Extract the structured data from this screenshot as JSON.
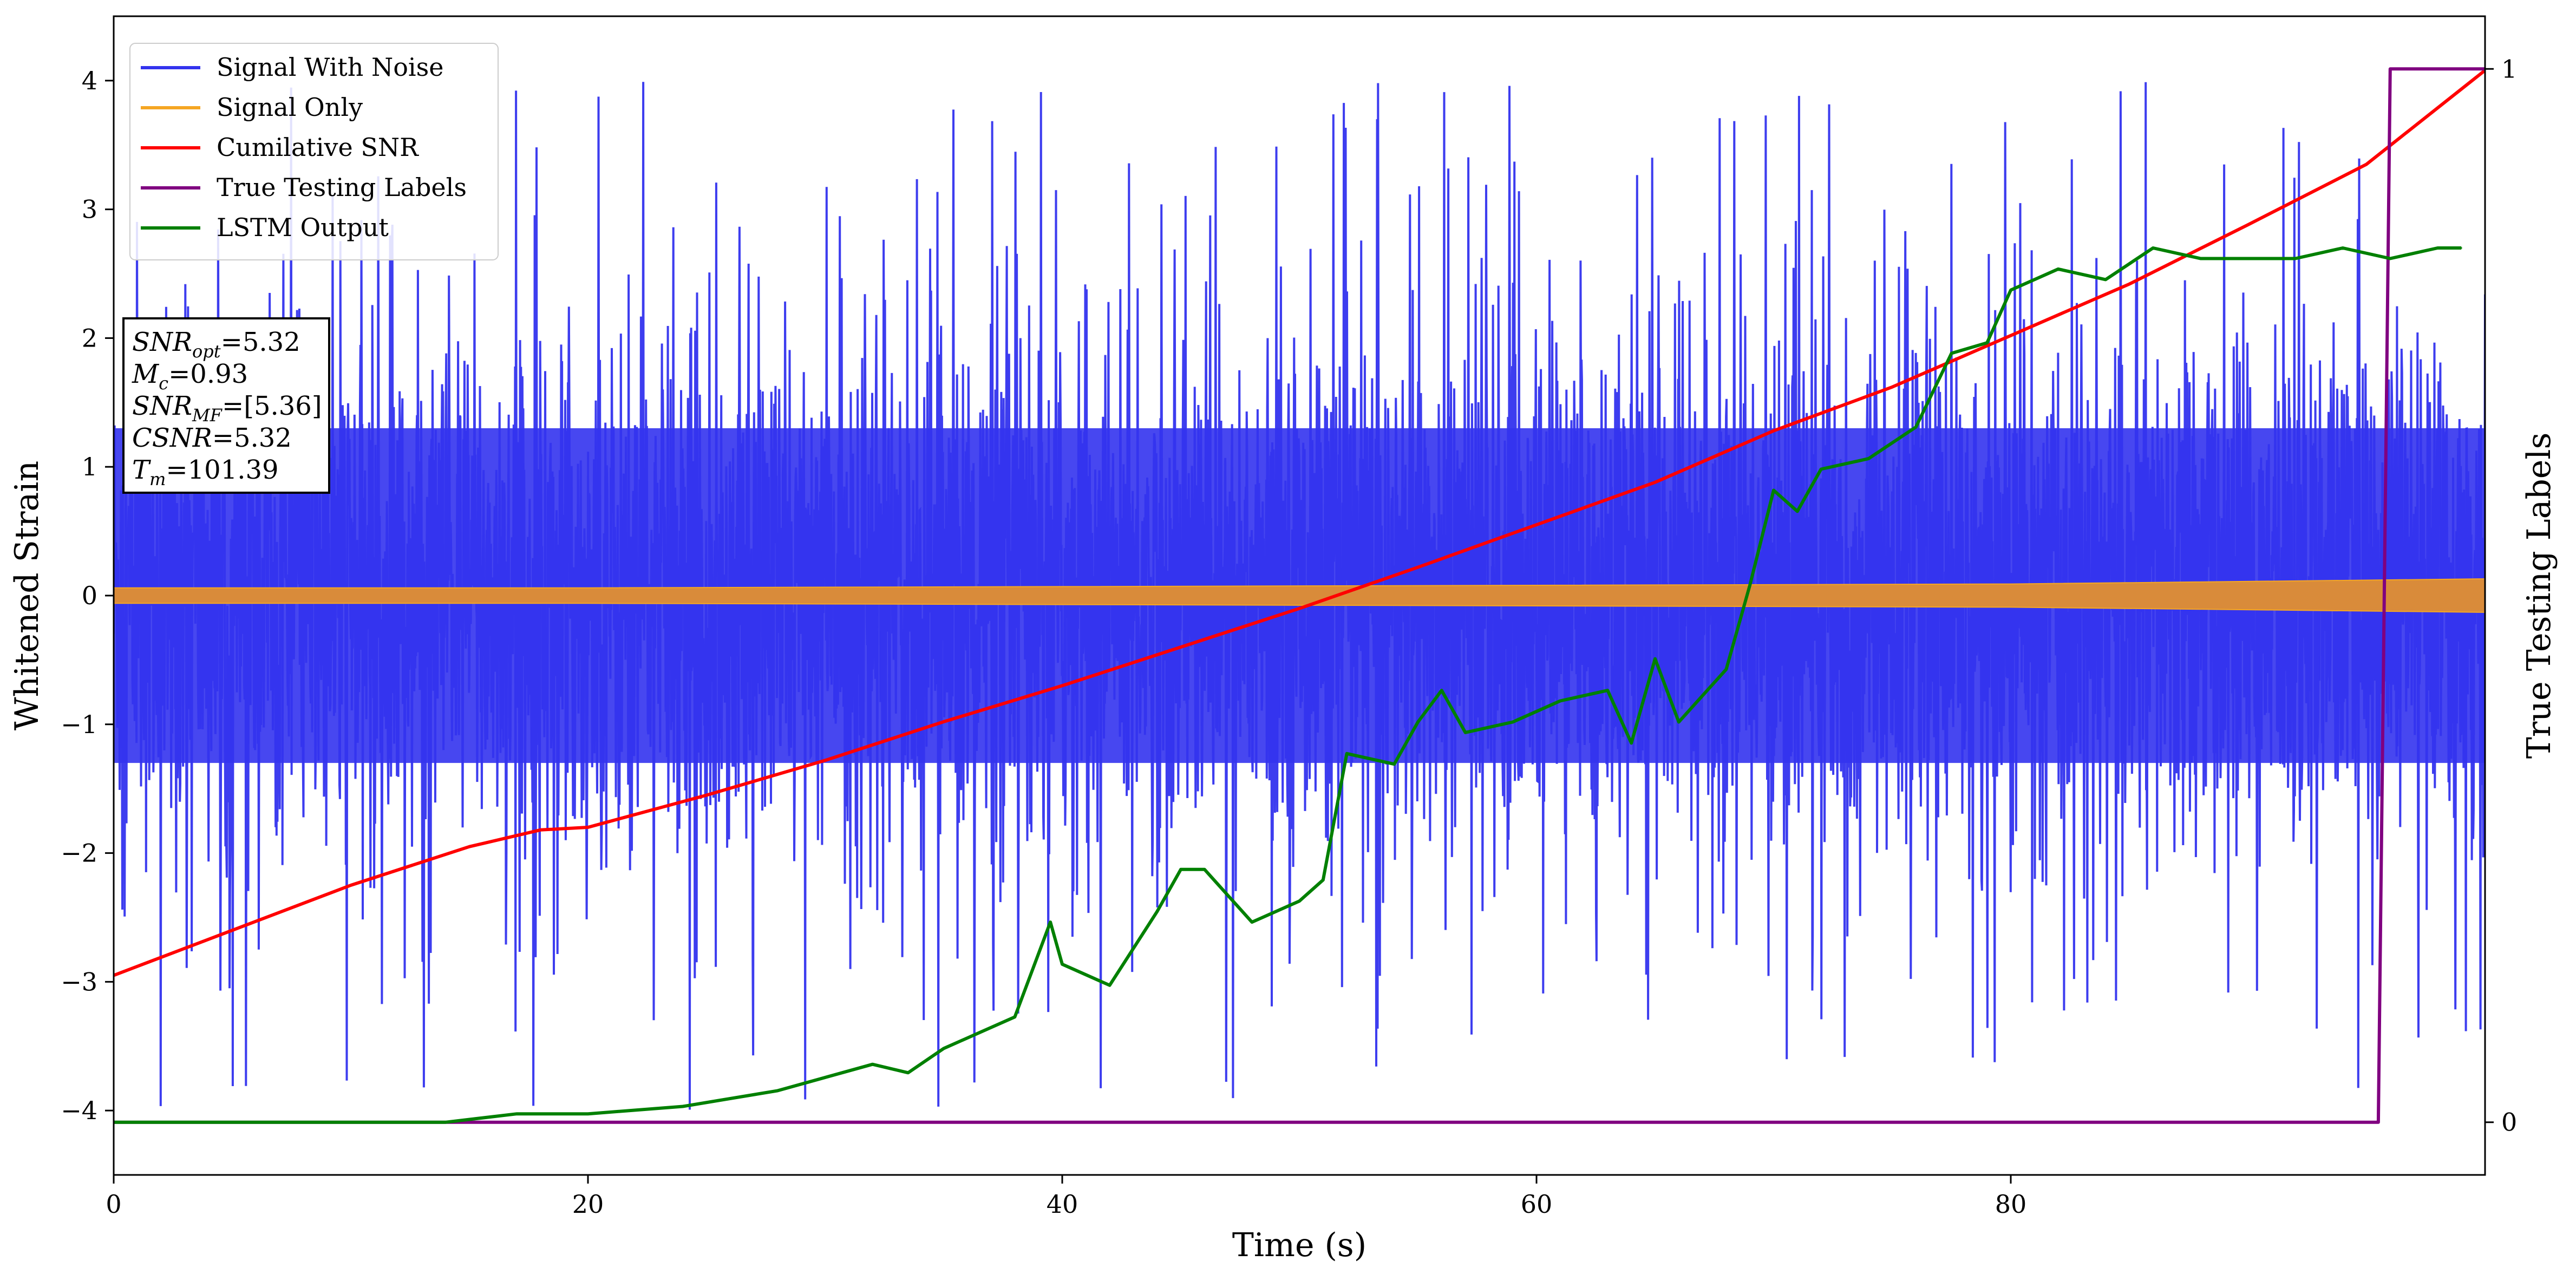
{
  "chart_data": {
    "type": "line",
    "xlabel": "Time (s)",
    "ylabel": "Whitened Strain",
    "y2label": "True Testing Labels",
    "xlim": [
      0,
      100
    ],
    "ylim": [
      -4.5,
      4.5
    ],
    "y2lim": [
      -0.05,
      1.05
    ],
    "grid": false,
    "legend_position": "top-left",
    "x_ticks": [
      0,
      20,
      40,
      60,
      80
    ],
    "x_tick_labels": [
      "0",
      "20",
      "40",
      "60",
      "80"
    ],
    "y_ticks": [
      -4,
      -3,
      -2,
      -1,
      0,
      1,
      2,
      3,
      4
    ],
    "y_tick_labels": [
      "−4",
      "−3",
      "−2",
      "−1",
      "0",
      "1",
      "2",
      "3",
      "4"
    ],
    "y2_ticks": [
      0,
      1
    ],
    "y2_tick_labels": [
      "0",
      "1"
    ],
    "series": [
      {
        "name": "Signal With Noise",
        "color": "#3333ee",
        "axis": "left",
        "envelope": {
          "x_start": 0,
          "x_end": 100,
          "core_min": -1.3,
          "core_max": 1.3,
          "peak_min": -4.1,
          "peak_max": 4.0
        }
      },
      {
        "name": "Signal Only",
        "color": "#f5a623",
        "axis": "left",
        "amplitude": {
          "x": [
            0,
            20,
            40,
            60,
            80,
            95,
            100
          ],
          "y": [
            0.06,
            0.06,
            0.07,
            0.08,
            0.09,
            0.12,
            0.13
          ]
        }
      },
      {
        "name": "Cumilative SNR",
        "color": "#ff0000",
        "axis": "left",
        "x": [
          0,
          5,
          10,
          15,
          18,
          20,
          25,
          30,
          35,
          40,
          45,
          50,
          55,
          60,
          65,
          70,
          75,
          80,
          85,
          90,
          95,
          100
        ],
        "y": [
          -2.95,
          -2.6,
          -2.25,
          -1.95,
          -1.82,
          -1.8,
          -1.55,
          -1.28,
          -0.98,
          -0.7,
          -0.4,
          -0.1,
          0.22,
          0.55,
          0.88,
          1.28,
          1.62,
          2.02,
          2.42,
          2.88,
          3.35,
          4.08
        ]
      },
      {
        "name": "True Testing Labels",
        "color": "#800080",
        "axis": "right",
        "x": [
          0,
          95.5,
          96.0,
          100
        ],
        "y": [
          0,
          0,
          1,
          1
        ]
      },
      {
        "name": "LSTM Output",
        "color": "#008000",
        "axis": "right",
        "x": [
          0,
          14,
          17,
          20,
          24,
          28,
          32,
          33.5,
          35,
          38,
          39.5,
          40,
          42,
          44,
          45,
          46,
          48,
          50,
          51,
          52,
          54,
          55,
          56,
          57,
          59,
          61,
          63,
          64,
          65,
          66,
          68,
          69,
          70,
          71,
          72,
          74,
          76,
          77.5,
          79,
          80,
          82,
          84,
          86,
          88,
          90,
          92,
          94,
          96,
          98,
          99
        ],
        "y": [
          0.0,
          0.0,
          0.008,
          0.008,
          0.015,
          0.03,
          0.055,
          0.047,
          0.07,
          0.1,
          0.19,
          0.15,
          0.13,
          0.2,
          0.24,
          0.24,
          0.19,
          0.21,
          0.23,
          0.35,
          0.34,
          0.38,
          0.41,
          0.37,
          0.38,
          0.4,
          0.41,
          0.36,
          0.44,
          0.38,
          0.43,
          0.51,
          0.6,
          0.58,
          0.62,
          0.63,
          0.66,
          0.73,
          0.74,
          0.79,
          0.81,
          0.8,
          0.83,
          0.82,
          0.82,
          0.82,
          0.83,
          0.82,
          0.83,
          0.83
        ]
      }
    ],
    "annotation_lines": [
      {
        "label": "SNR",
        "sub": "opt",
        "value": "=5.32"
      },
      {
        "label": "M",
        "sub": "c",
        "value": "=0.93"
      },
      {
        "label": "SNR",
        "sub": "MF",
        "value": "=[5.36]"
      },
      {
        "label": "CSNR",
        "sub": "",
        "value": "=5.32"
      },
      {
        "label": "T",
        "sub": "m",
        "value": "=101.39"
      }
    ]
  }
}
